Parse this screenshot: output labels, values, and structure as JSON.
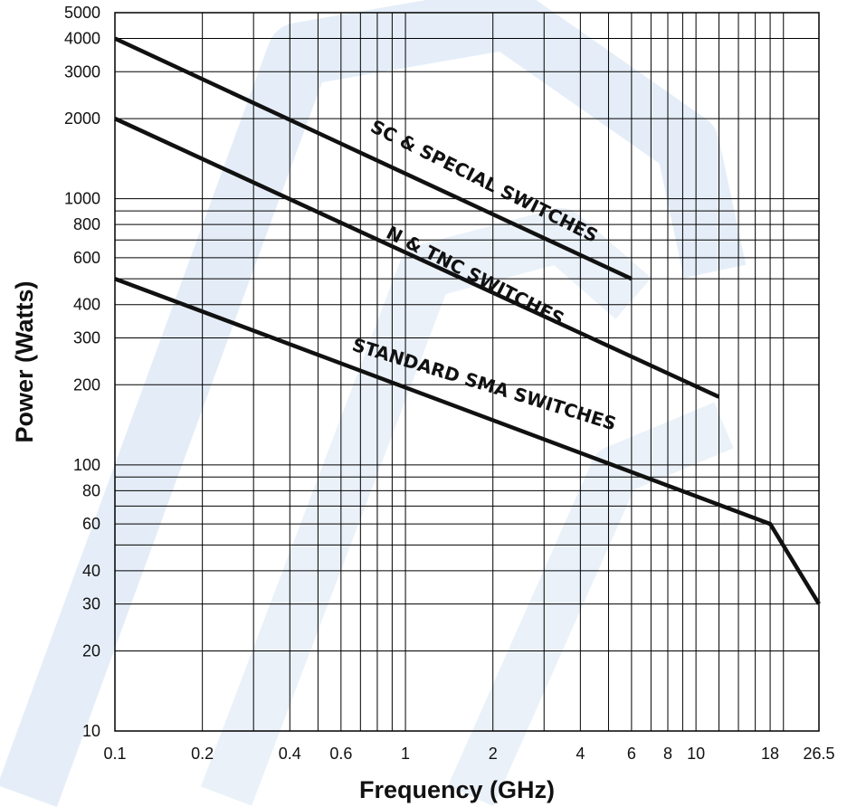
{
  "chart_data": {
    "type": "line",
    "title": "",
    "xlabel": "Frequency (GHz)",
    "ylabel": "Power (Watts)",
    "x_scale": "log",
    "y_scale": "log",
    "xlim": [
      0.1,
      26.5
    ],
    "ylim": [
      10,
      5000
    ],
    "x_ticks": [
      0.1,
      0.2,
      0.4,
      0.6,
      1,
      2,
      4,
      6,
      8,
      10,
      18,
      26.5
    ],
    "x_tick_labels": [
      "0.1",
      "0.2",
      "0.4",
      "0.6",
      "1",
      "2",
      "4",
      "6",
      "8",
      "10",
      "18",
      "26.5"
    ],
    "y_ticks": [
      10,
      20,
      30,
      40,
      60,
      80,
      100,
      200,
      300,
      400,
      600,
      800,
      1000,
      2000,
      3000,
      4000,
      5000
    ],
    "y_tick_labels": [
      "10",
      "20",
      "30",
      "40",
      "60",
      "80",
      "100",
      "200",
      "300",
      "400",
      "600",
      "800",
      "1000",
      "2000",
      "3000",
      "4000",
      "5000"
    ],
    "x_gridlines": [
      0.1,
      0.2,
      0.3,
      0.4,
      0.5,
      0.6,
      0.7,
      0.8,
      0.9,
      1,
      2,
      3,
      4,
      5,
      6,
      7,
      8,
      9,
      10,
      12,
      14,
      16,
      18,
      20,
      26.5
    ],
    "y_gridlines": [
      10,
      20,
      30,
      40,
      50,
      60,
      70,
      80,
      90,
      100,
      200,
      300,
      400,
      500,
      600,
      700,
      800,
      900,
      1000,
      2000,
      3000,
      4000,
      5000
    ],
    "grid": true,
    "legend": "none",
    "series": [
      {
        "name": "SC & SPECIAL SWITCHES",
        "label": "SC & SPECIAL SWITCHES",
        "x": [
          0.1,
          6
        ],
        "y": [
          4000,
          500
        ],
        "label_at": [
          0.75,
          1800
        ],
        "label_angle": 26.5
      },
      {
        "name": "N & TNC SWITCHES",
        "label": "N & TNC SWITCHES",
        "x": [
          0.1,
          12
        ],
        "y": [
          2000,
          180
        ],
        "label_at": [
          0.85,
          720
        ],
        "label_angle": 27
      },
      {
        "name": "STANDARD SMA SWITCHES",
        "label": "STANDARD SMA SWITCHES",
        "x": [
          0.1,
          18,
          26.5
        ],
        "y": [
          500,
          60,
          30
        ],
        "label_at": [
          0.65,
          270
        ],
        "label_angle": 17
      }
    ]
  },
  "colors": {
    "background": "#ffffff",
    "line": "#111111",
    "grid": "#000000",
    "watermark": "#cfe0f2"
  }
}
